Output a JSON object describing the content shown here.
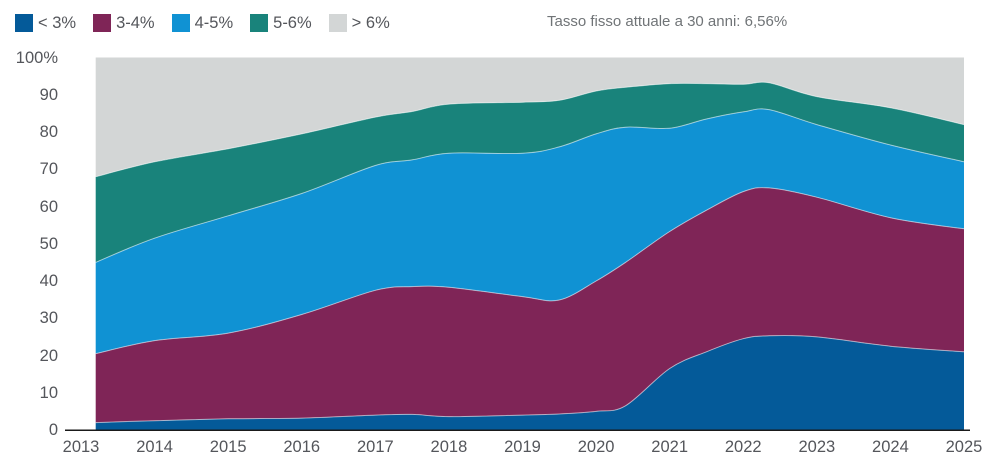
{
  "annotation": {
    "text": "Tasso fisso attuale a 30 anni: 6,56%"
  },
  "legend": {
    "items": [
      {
        "label": "< 3%",
        "color": "#045a99"
      },
      {
        "label": "3-4%",
        "color": "#7f2557"
      },
      {
        "label": "4-5%",
        "color": "#1092d3"
      },
      {
        "label": "5-6%",
        "color": "#19837b"
      },
      {
        "label": "> 6%",
        "color": "#d3d6d6"
      }
    ]
  },
  "chart_data": {
    "type": "area",
    "stacked": true,
    "unit": "percent",
    "title": "",
    "xlabel": "",
    "ylabel": "",
    "ylim": [
      0,
      100
    ],
    "grid": false,
    "legend_position": "top-left",
    "x_ticks": [
      2013,
      2014,
      2015,
      2016,
      2017,
      2018,
      2019,
      2020,
      2021,
      2022,
      2023,
      2024,
      2025
    ],
    "y_ticks": [
      {
        "value": 0,
        "label": "0"
      },
      {
        "value": 10,
        "label": "10"
      },
      {
        "value": 20,
        "label": "20"
      },
      {
        "value": 30,
        "label": "30"
      },
      {
        "value": 40,
        "label": "40"
      },
      {
        "value": 50,
        "label": "50"
      },
      {
        "value": 60,
        "label": "60"
      },
      {
        "value": 70,
        "label": "70"
      },
      {
        "value": 80,
        "label": "80"
      },
      {
        "value": 90,
        "label": "90"
      },
      {
        "value": 100,
        "label": "100%"
      }
    ],
    "x": [
      2013.2,
      2014,
      2015,
      2016,
      2017,
      2017.5,
      2018,
      2019,
      2019.5,
      2020,
      2020.4,
      2021,
      2021.5,
      2022,
      2022.35,
      2023,
      2024,
      2025
    ],
    "series": [
      {
        "name": "< 3%",
        "color": "#045a99",
        "values": [
          2,
          2.5,
          3,
          3.2,
          4,
          4.2,
          3.6,
          4,
          4.3,
          5,
          6.5,
          16.5,
          21,
          24.5,
          25.3,
          25,
          22.5,
          21
        ]
      },
      {
        "name": "3-4%",
        "color": "#7f2557",
        "values": [
          18.5,
          21.5,
          23,
          27.8,
          33.5,
          34.3,
          34.7,
          31.8,
          30.6,
          35,
          38.5,
          36.8,
          38,
          39.5,
          39.7,
          37.5,
          34.5,
          33
        ]
      },
      {
        "name": "4-5%",
        "color": "#1092d3",
        "values": [
          24.5,
          27.5,
          31.5,
          32.5,
          33.5,
          34,
          36,
          38.5,
          41.1,
          39.5,
          36.3,
          27.7,
          24.5,
          21.4,
          21,
          19.5,
          19.5,
          18
        ]
      },
      {
        "name": "5-6%",
        "color": "#19837b",
        "values": [
          23,
          20.5,
          18,
          16,
          13,
          13,
          13.2,
          13.7,
          12.5,
          11.5,
          10.7,
          12,
          9.5,
          7.4,
          7.2,
          7.5,
          10,
          10
        ]
      },
      {
        "name": "> 6%",
        "color": "#d3d6d6",
        "values": [
          32,
          28,
          24.5,
          20.5,
          16,
          14.5,
          12.5,
          12,
          11.5,
          9,
          8,
          7,
          7,
          7.2,
          6.8,
          10.5,
          13.5,
          18
        ]
      }
    ]
  }
}
